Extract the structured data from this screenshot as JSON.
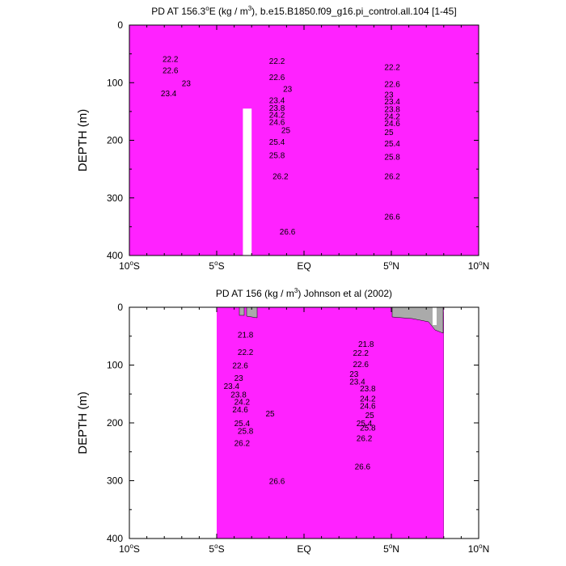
{
  "chart_data": [
    {
      "type": "contour",
      "title": "PD AT 156.3°E (kg / m³), b.e15.B1850.f09_g16.pi_control.all.104 [1-45]",
      "title_main": "PD AT 156.3",
      "title_deg": "o",
      "title_rest": "E (kg / m",
      "title_sup": "3",
      "title_tail": "), b.e15.B1850.f09_g16.pi_control.all.104 [1-45]",
      "ylabel": "DEPTH (m)",
      "xlabel": "",
      "xlim": [
        -10,
        10
      ],
      "ylim": [
        400,
        0
      ],
      "x_ticks": [
        {
          "value": -10,
          "num": "10",
          "sup": "o",
          "hem": "S"
        },
        {
          "value": -5,
          "num": "5",
          "sup": "o",
          "hem": "S"
        },
        {
          "value": 0,
          "num": "EQ",
          "sup": "",
          "hem": ""
        },
        {
          "value": 5,
          "num": "5",
          "sup": "o",
          "hem": "N"
        },
        {
          "value": 10,
          "num": "10",
          "sup": "o",
          "hem": "N"
        }
      ],
      "y_ticks": [
        {
          "value": 0,
          "label": "0"
        },
        {
          "value": 100,
          "label": "100"
        },
        {
          "value": 200,
          "label": "200"
        },
        {
          "value": 300,
          "label": "300"
        },
        {
          "value": 400,
          "label": "400"
        }
      ],
      "data_xrange": [
        -10,
        10
      ],
      "missing_column": {
        "x0": -3.5,
        "x1": -3.0,
        "depth_from": 145
      },
      "contour_labels": [
        {
          "x": -8.1,
          "depth": 58,
          "text": "22.2"
        },
        {
          "x": -8.1,
          "depth": 78,
          "text": "22.6"
        },
        {
          "x": -7.0,
          "depth": 100,
          "text": "23"
        },
        {
          "x": -8.2,
          "depth": 118,
          "text": "23.4"
        },
        {
          "x": -2.0,
          "depth": 62,
          "text": "22.2"
        },
        {
          "x": -2.0,
          "depth": 90,
          "text": "22.6"
        },
        {
          "x": -1.2,
          "depth": 110,
          "text": "23"
        },
        {
          "x": -2.0,
          "depth": 130,
          "text": "23.4"
        },
        {
          "x": -2.0,
          "depth": 143,
          "text": "23.8"
        },
        {
          "x": -2.0,
          "depth": 155,
          "text": "24.2"
        },
        {
          "x": -2.0,
          "depth": 168,
          "text": "24.6"
        },
        {
          "x": -1.3,
          "depth": 182,
          "text": "25"
        },
        {
          "x": -2.0,
          "depth": 202,
          "text": "25.4"
        },
        {
          "x": -2.0,
          "depth": 225,
          "text": "25.8"
        },
        {
          "x": -1.8,
          "depth": 262,
          "text": "26.2"
        },
        {
          "x": -1.4,
          "depth": 358,
          "text": "26.6"
        },
        {
          "x": 4.6,
          "depth": 72,
          "text": "22.2"
        },
        {
          "x": 4.6,
          "depth": 102,
          "text": "22.6"
        },
        {
          "x": 4.6,
          "depth": 120,
          "text": "23"
        },
        {
          "x": 4.6,
          "depth": 132,
          "text": "23.4"
        },
        {
          "x": 4.6,
          "depth": 145,
          "text": "23.8"
        },
        {
          "x": 4.6,
          "depth": 158,
          "text": "24.2"
        },
        {
          "x": 4.6,
          "depth": 170,
          "text": "24.6"
        },
        {
          "x": 4.6,
          "depth": 185,
          "text": "25"
        },
        {
          "x": 4.6,
          "depth": 205,
          "text": "25.4"
        },
        {
          "x": 4.6,
          "depth": 228,
          "text": "25.8"
        },
        {
          "x": 4.6,
          "depth": 262,
          "text": "26.2"
        },
        {
          "x": 4.6,
          "depth": 332,
          "text": "26.6"
        }
      ]
    },
    {
      "type": "contour",
      "title": "PD AT 156 (kg / m³) Johnson et al (2002)",
      "title_main": "PD AT 156 (kg / m",
      "title_deg": "",
      "title_rest": "",
      "title_sup": "3",
      "title_tail": ") Johnson et al (2002)",
      "ylabel": "DEPTH (m)",
      "xlabel": "",
      "xlim": [
        -10,
        10
      ],
      "ylim": [
        400,
        0
      ],
      "x_ticks": [
        {
          "value": -10,
          "num": "10",
          "sup": "o",
          "hem": "S"
        },
        {
          "value": -5,
          "num": "5",
          "sup": "o",
          "hem": "S"
        },
        {
          "value": 0,
          "num": "EQ",
          "sup": "",
          "hem": ""
        },
        {
          "value": 5,
          "num": "5",
          "sup": "o",
          "hem": "N"
        },
        {
          "value": 10,
          "num": "10",
          "sup": "o",
          "hem": "N"
        }
      ],
      "y_ticks": [
        {
          "value": 0,
          "label": "0"
        },
        {
          "value": 100,
          "label": "100"
        },
        {
          "value": 200,
          "label": "200"
        },
        {
          "value": 300,
          "label": "300"
        },
        {
          "value": 400,
          "label": "400"
        }
      ],
      "data_xrange": [
        -5,
        8
      ],
      "missing_column": null,
      "contour_labels": [
        {
          "x": -3.8,
          "depth": 47,
          "text": "21.8"
        },
        {
          "x": -3.8,
          "depth": 77,
          "text": "22.2"
        },
        {
          "x": -4.1,
          "depth": 100,
          "text": "22.6"
        },
        {
          "x": -4.0,
          "depth": 122,
          "text": "23"
        },
        {
          "x": -4.6,
          "depth": 136,
          "text": "23.4"
        },
        {
          "x": -4.2,
          "depth": 150,
          "text": "23.8"
        },
        {
          "x": -4.0,
          "depth": 163,
          "text": "24.2"
        },
        {
          "x": -4.1,
          "depth": 176,
          "text": "24.6"
        },
        {
          "x": -2.2,
          "depth": 183,
          "text": "25"
        },
        {
          "x": -4.0,
          "depth": 200,
          "text": "25.4"
        },
        {
          "x": -3.8,
          "depth": 213,
          "text": "25.8"
        },
        {
          "x": -4.0,
          "depth": 234,
          "text": "26.2"
        },
        {
          "x": -2.0,
          "depth": 300,
          "text": "26.6"
        },
        {
          "x": 3.1,
          "depth": 63,
          "text": "21.8"
        },
        {
          "x": 2.8,
          "depth": 78,
          "text": "22.2"
        },
        {
          "x": 2.8,
          "depth": 98,
          "text": "22.6"
        },
        {
          "x": 2.6,
          "depth": 115,
          "text": "23"
        },
        {
          "x": 2.6,
          "depth": 128,
          "text": "23.4"
        },
        {
          "x": 3.2,
          "depth": 140,
          "text": "23.8"
        },
        {
          "x": 3.2,
          "depth": 157,
          "text": "24.2"
        },
        {
          "x": 3.2,
          "depth": 170,
          "text": "24.6"
        },
        {
          "x": 3.5,
          "depth": 186,
          "text": "25"
        },
        {
          "x": 3.0,
          "depth": 200,
          "text": "25.4"
        },
        {
          "x": 3.2,
          "depth": 208,
          "text": "25.8"
        },
        {
          "x": 3.0,
          "depth": 226,
          "text": "26.2"
        },
        {
          "x": 2.9,
          "depth": 275,
          "text": "26.6"
        }
      ]
    }
  ]
}
